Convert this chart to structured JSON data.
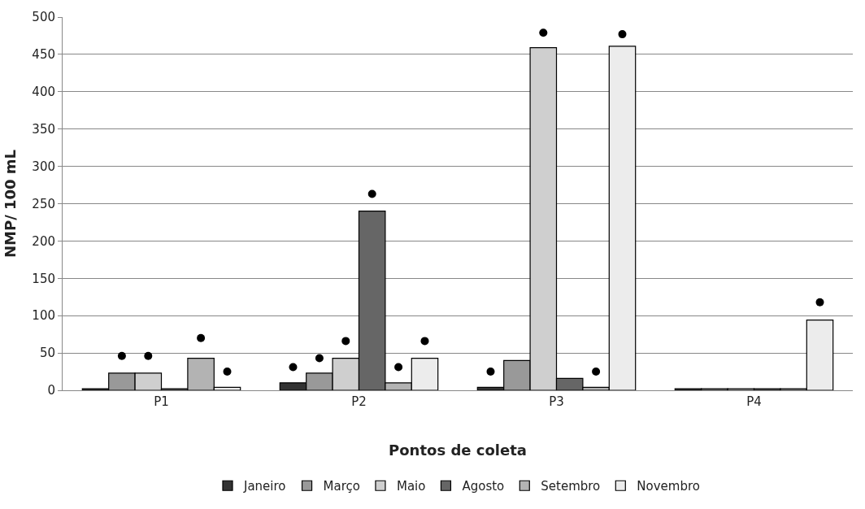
{
  "chart_data": {
    "type": "bar",
    "xlabel": "Pontos de coleta",
    "ylabel": "NMP/ 100 mL",
    "categories": [
      "P1",
      "P2",
      "P3",
      "P4"
    ],
    "series": [
      {
        "name": "Janeiro",
        "color": "#333333",
        "values": [
          2,
          10,
          4,
          2
        ]
      },
      {
        "name": "Março",
        "color": "#999999",
        "values": [
          23,
          23,
          40,
          2
        ]
      },
      {
        "name": "Maio",
        "color": "#cfcfcf",
        "values": [
          23,
          43,
          459,
          2
        ]
      },
      {
        "name": "Agosto",
        "color": "#666666",
        "values": [
          2,
          240,
          16,
          2
        ]
      },
      {
        "name": "Setembro",
        "color": "#b3b3b3",
        "values": [
          43,
          10,
          4,
          2
        ]
      },
      {
        "name": "Novembro",
        "color": "#ececec",
        "values": [
          4,
          43,
          461,
          94
        ]
      },
      {
        "type": "scatter",
        "color": "#000000",
        "x": [
          "P1",
          "P2",
          "P3",
          "P4"
        ],
        "values": [
          null,
          31,
          25,
          null
        ]
      },
      {
        "type": "scatter",
        "color": "#000000",
        "x": [
          "P1",
          "P2",
          "P3",
          "P4"
        ],
        "values": [
          46,
          43,
          null,
          null
        ]
      },
      {
        "type": "scatter",
        "color": "#000000",
        "x": [
          "P1",
          "P2",
          "P3",
          "P4"
        ],
        "values": [
          46,
          66,
          479,
          null
        ]
      },
      {
        "type": "scatter",
        "color": "#000000",
        "x": [
          "P1",
          "P2",
          "P3",
          "P4"
        ],
        "values": [
          null,
          263,
          null,
          null
        ]
      },
      {
        "type": "scatter",
        "color": "#000000",
        "x": [
          "P1",
          "P2",
          "P3",
          "P4"
        ],
        "values": [
          70,
          31,
          25,
          null
        ]
      },
      {
        "type": "scatter",
        "color": "#000000",
        "x": [
          "P1",
          "P2",
          "P3",
          "P4"
        ],
        "values": [
          25,
          66,
          477,
          118
        ]
      }
    ],
    "ylim": [
      0,
      500
    ],
    "yticks": [
      0,
      50,
      100,
      150,
      200,
      250,
      300,
      350,
      400,
      450,
      500
    ],
    "grid": "y",
    "legend": "bottom",
    "marker": "circle"
  }
}
